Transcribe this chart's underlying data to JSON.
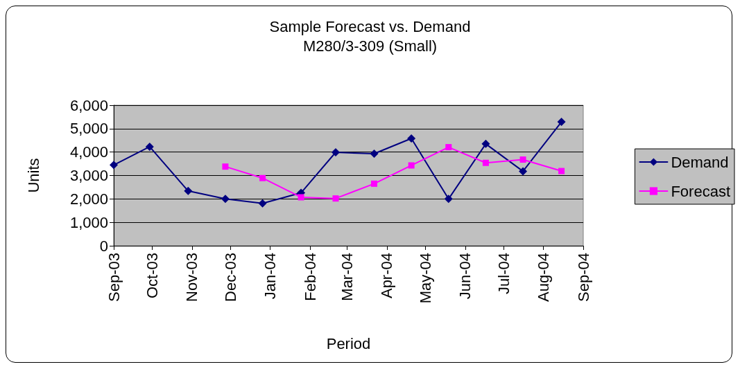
{
  "chart_data": {
    "type": "line",
    "title": "Sample Forecast vs. Demand",
    "subtitle": "M280/3-309 (Small)",
    "xlabel": "Period",
    "ylabel": "Units",
    "x": [
      "2003-09-01",
      "2003-09-29",
      "2003-10-29",
      "2003-11-27",
      "2003-12-26",
      "2004-01-25",
      "2004-02-21",
      "2004-03-22",
      "2004-04-20",
      "2004-05-19",
      "2004-06-17",
      "2004-07-16",
      "2004-08-15"
    ],
    "series": [
      {
        "name": "Demand",
        "color": "#000080",
        "marker": "diamond",
        "values": [
          3450,
          4230,
          2340,
          2000,
          1810,
          2260,
          3990,
          3930,
          4580,
          2000,
          4350,
          3180,
          5290
        ]
      },
      {
        "name": "Forecast",
        "color": "#ff00ff",
        "marker": "square",
        "values": [
          null,
          null,
          null,
          3380,
          2890,
          2070,
          2020,
          2650,
          3430,
          4210,
          3540,
          3680,
          3190
        ]
      }
    ],
    "xlim": [
      "2003-09-01",
      "2004-09-01"
    ],
    "xticks": [
      {
        "value": "2003-09-01",
        "label": "Sep-03"
      },
      {
        "value": "2003-10-01",
        "label": "Oct-03"
      },
      {
        "value": "2003-11-01",
        "label": "Nov-03"
      },
      {
        "value": "2003-12-01",
        "label": "Dec-03"
      },
      {
        "value": "2004-01-01",
        "label": "Jan-04"
      },
      {
        "value": "2004-02-01",
        "label": "Feb-04"
      },
      {
        "value": "2004-03-01",
        "label": "Mar-04"
      },
      {
        "value": "2004-04-01",
        "label": "Apr-04"
      },
      {
        "value": "2004-05-01",
        "label": "May-04"
      },
      {
        "value": "2004-06-01",
        "label": "Jun-04"
      },
      {
        "value": "2004-07-01",
        "label": "Jul-04"
      },
      {
        "value": "2004-08-01",
        "label": "Aug-04"
      },
      {
        "value": "2004-09-01",
        "label": "Sep-04"
      }
    ],
    "ylim": [
      0,
      6000
    ],
    "yticks": [
      {
        "value": 0,
        "label": "0"
      },
      {
        "value": 1000,
        "label": "1,000"
      },
      {
        "value": 2000,
        "label": "2,000"
      },
      {
        "value": 3000,
        "label": "3,000"
      },
      {
        "value": 4000,
        "label": "4,000"
      },
      {
        "value": 5000,
        "label": "5,000"
      },
      {
        "value": 6000,
        "label": "6,000"
      }
    ],
    "grid": "y",
    "legend": "right",
    "line_style": "solid"
  }
}
